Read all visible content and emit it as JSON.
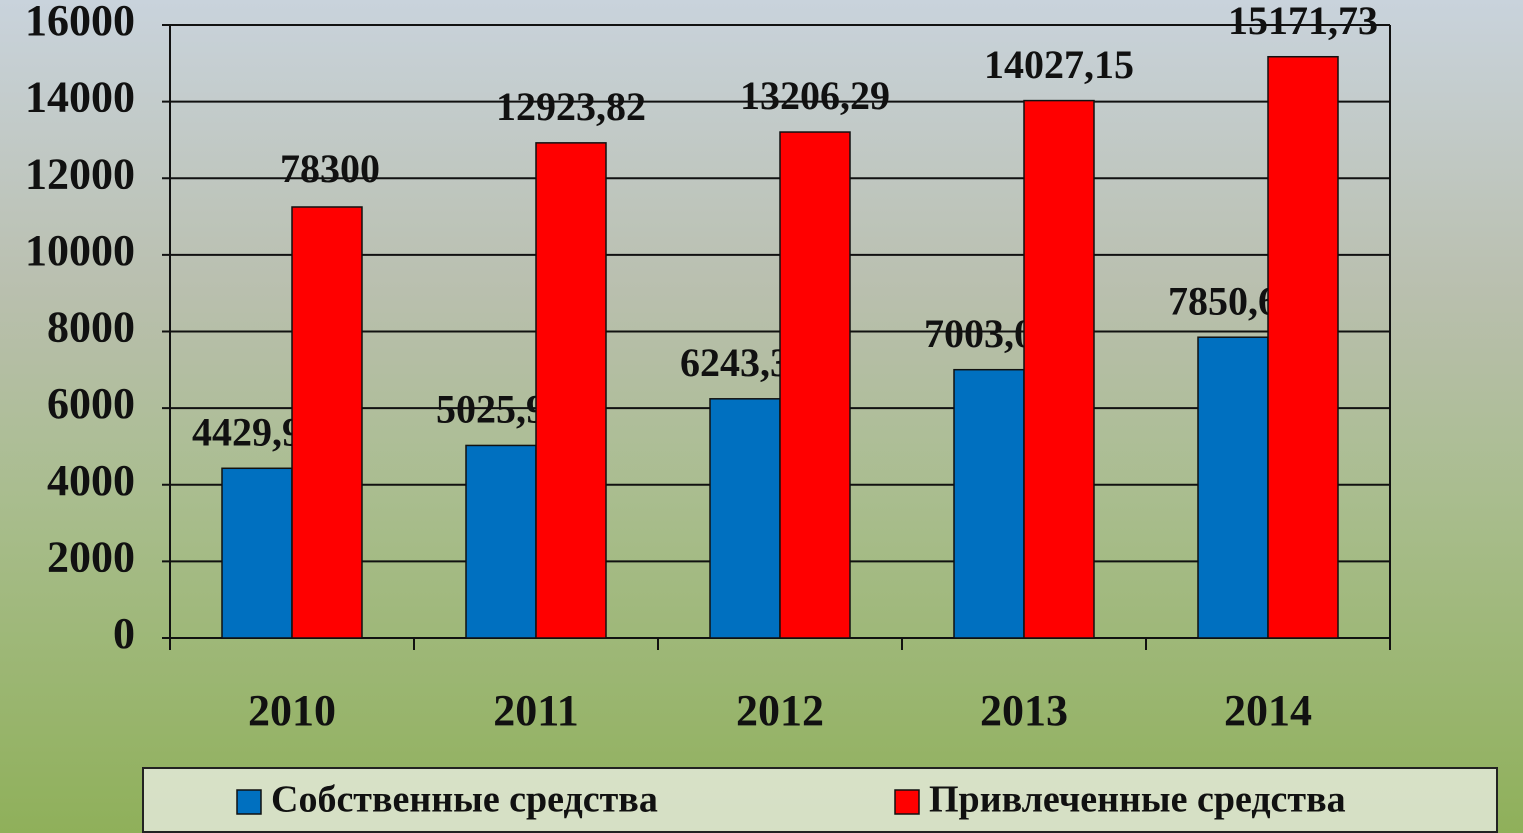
{
  "chart_data": {
    "type": "bar",
    "categories": [
      "2010",
      "2011",
      "2012",
      "2013",
      "2014"
    ],
    "series": [
      {
        "name": "Собственные средства",
        "color": "#0070c0",
        "values": [
          4429.97,
          5025.93,
          6243.33,
          7003.06,
          7850.62
        ],
        "value_labels": [
          "4429,97",
          "5025,93",
          "6243,33",
          "7003,06",
          "7850,62"
        ]
      },
      {
        "name": "Привлеченные средства",
        "color": "#ff0000",
        "values": [
          11250,
          12923.82,
          13206.29,
          14027.15,
          15171.73
        ],
        "value_labels": [
          null,
          "12923,82",
          "13206,29",
          "14027,15",
          "15171,73"
        ]
      }
    ],
    "annotations": [
      {
        "text": "78300"
      }
    ],
    "ylim": [
      0,
      16000
    ],
    "yticks": [
      0,
      2000,
      4000,
      6000,
      8000,
      10000,
      12000,
      14000,
      16000
    ],
    "grid": true,
    "legend": "bottom"
  }
}
